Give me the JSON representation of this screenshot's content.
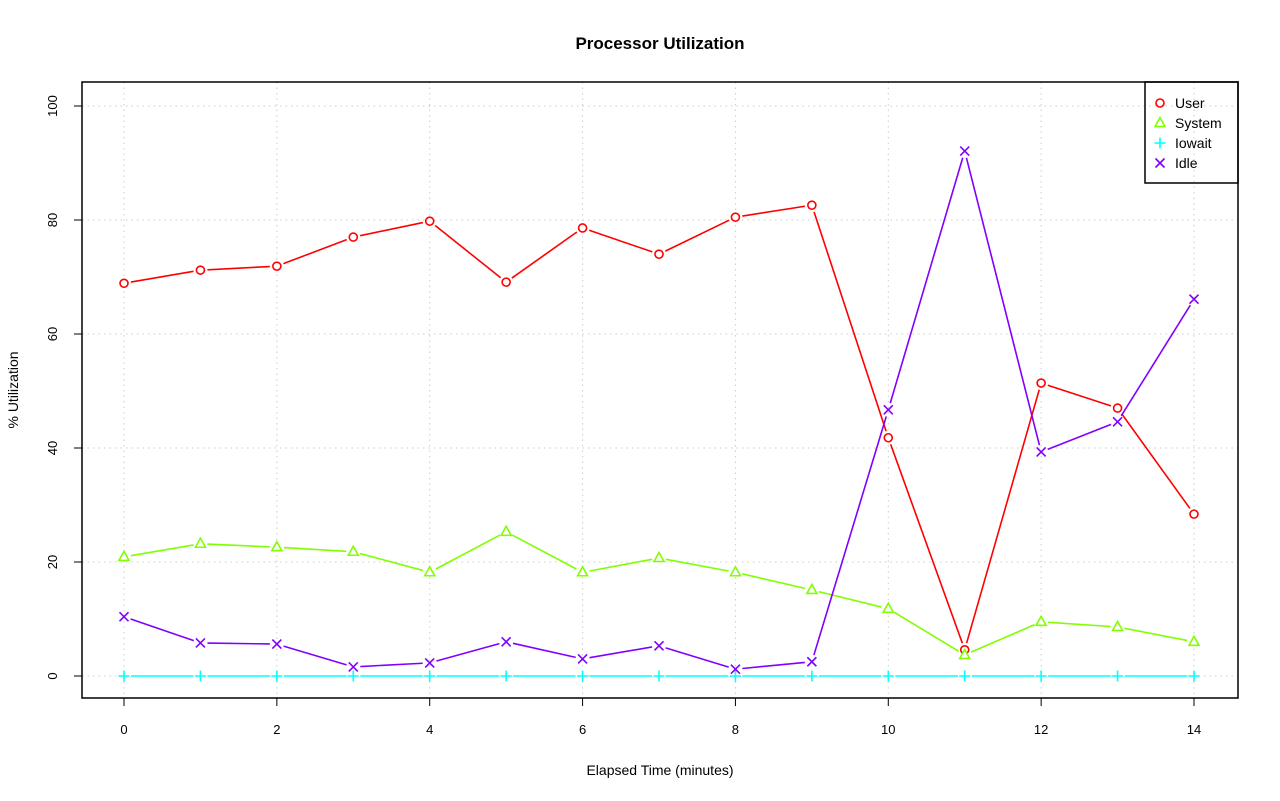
{
  "chart_data": {
    "type": "line",
    "title": "Processor Utilization",
    "xlabel": "Elapsed Time (minutes)",
    "ylabel": "% Utilization",
    "xlim": [
      0,
      14
    ],
    "ylim": [
      0,
      100
    ],
    "xticks": [
      "0",
      "2",
      "4",
      "6",
      "8",
      "10",
      "12",
      "14"
    ],
    "yticks": [
      "0",
      "20",
      "40",
      "60",
      "80",
      "100"
    ],
    "grid": true,
    "legend_position": "top-right",
    "x": [
      0,
      1,
      2,
      3,
      4,
      5,
      6,
      7,
      8,
      9,
      10,
      11,
      12,
      13,
      14
    ],
    "series": [
      {
        "name": "User",
        "color": "#ff0000",
        "marker": "circle",
        "values": [
          68.9,
          71.2,
          71.9,
          77.0,
          79.8,
          69.1,
          78.6,
          74.0,
          80.5,
          82.6,
          41.8,
          4.6,
          51.4,
          47.0,
          28.4
        ]
      },
      {
        "name": "System",
        "color": "#80ff00",
        "marker": "triangle",
        "values": [
          20.9,
          23.2,
          22.6,
          21.8,
          18.2,
          25.3,
          18.2,
          20.7,
          18.2,
          15.1,
          11.8,
          3.7,
          9.5,
          8.6,
          6.0
        ]
      },
      {
        "name": "Iowait",
        "color": "#00ffff",
        "marker": "plus",
        "values": [
          0,
          0,
          0,
          0,
          0,
          0,
          0,
          0,
          0,
          0,
          0,
          0,
          0,
          0,
          0
        ]
      },
      {
        "name": "Idle",
        "color": "#8000ff",
        "marker": "cross",
        "values": [
          10.4,
          5.8,
          5.6,
          1.6,
          2.3,
          6.0,
          3.0,
          5.3,
          1.2,
          2.5,
          46.7,
          92.1,
          39.3,
          44.6,
          66.1
        ]
      }
    ]
  }
}
